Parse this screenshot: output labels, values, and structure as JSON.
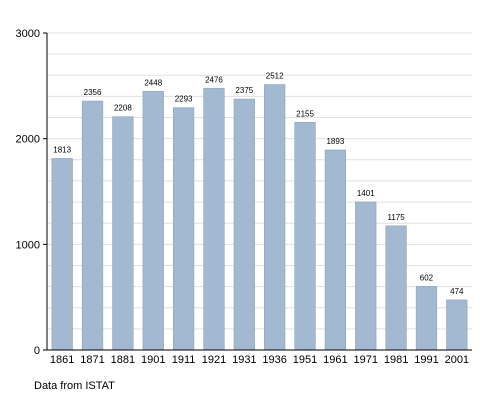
{
  "chart_data": {
    "type": "bar",
    "categories": [
      "1861",
      "1871",
      "1881",
      "1901",
      "1911",
      "1921",
      "1931",
      "1936",
      "1951",
      "1961",
      "1971",
      "1981",
      "1991",
      "2001"
    ],
    "values": [
      1813,
      2356,
      2208,
      2448,
      2293,
      2476,
      2375,
      2512,
      2155,
      1893,
      1401,
      1175,
      602,
      474
    ],
    "ylim": [
      0,
      3000
    ],
    "yticks": [
      0,
      1000,
      2000,
      3000
    ],
    "grid": true,
    "bar_color": "#a3b8d1",
    "bar_edge_color": "#8ea4bf",
    "grid_color": "#e0e0e0"
  },
  "source_note": "Data from ISTAT"
}
